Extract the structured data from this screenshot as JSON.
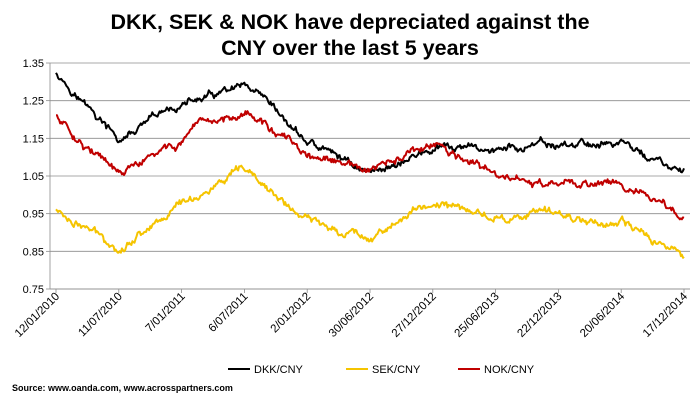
{
  "chart_data": {
    "type": "line",
    "title_lines": [
      "DKK, SEK & NOK have depreciated against the",
      "CNY over the last 5 years"
    ],
    "source": "Source: www.oanda.com, www.acrosspartners.com",
    "ylim": [
      0.75,
      1.35
    ],
    "yticks": [
      "0.75",
      "0.85",
      "0.95",
      "1.05",
      "1.15",
      "1.25",
      "1.35"
    ],
    "grid": true,
    "legend_position": "bottom",
    "xticks": [
      "12/01/2010",
      "11/07/2010",
      "7/01/2011",
      "6/07/2011",
      "2/01/2012",
      "30/06/2012",
      "27/12/2012",
      "25/06/2013",
      "22/12/2013",
      "20/06/2014",
      "17/12/2014"
    ],
    "x": [
      "12/01/2010",
      "11/07/2010",
      "7/01/2011",
      "6/07/2011",
      "2/01/2012",
      "30/06/2012",
      "27/12/2012",
      "25/06/2013",
      "22/12/2013",
      "20/06/2014",
      "17/12/2014"
    ],
    "series": [
      {
        "name": "DKK/CNY",
        "color": "#000000",
        "values": [
          1.33,
          1.14,
          1.24,
          1.28,
          1.14,
          1.06,
          1.12,
          1.12,
          1.13,
          1.14,
          1.05
        ]
      },
      {
        "name": "SEK/CNY",
        "color": "#f5c400",
        "values": [
          0.96,
          0.86,
          0.98,
          1.06,
          0.93,
          0.89,
          0.98,
          0.94,
          0.95,
          0.92,
          0.84
        ]
      },
      {
        "name": "NOK/CNY",
        "color": "#c00000",
        "values": [
          1.21,
          1.05,
          1.14,
          1.23,
          1.1,
          1.06,
          1.13,
          1.05,
          1.02,
          1.04,
          0.93
        ]
      }
    ]
  }
}
